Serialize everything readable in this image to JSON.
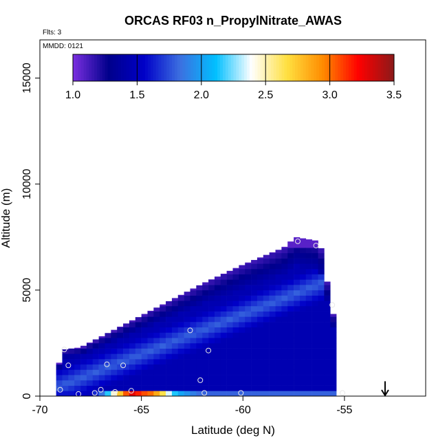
{
  "chart_data": {
    "type": "heatmap",
    "title": "ORCAS RF03 n_PropylNitrate_AWAS",
    "annotations": {
      "flights": "Flts: 3",
      "date": "MMDD: 0121"
    },
    "xlabel": "Latitude (deg N)",
    "ylabel": "Altitude (m)",
    "xlim": [
      -70,
      -51
    ],
    "ylim": [
      0,
      16800
    ],
    "x_ticks": [
      -70,
      -65,
      -60,
      -55
    ],
    "x_tick_labels": [
      "-70",
      "-65",
      "-60",
      "-55"
    ],
    "y_ticks": [
      0,
      5000,
      10000,
      15000
    ],
    "y_tick_labels": [
      "0",
      "5000",
      "10000",
      "15000"
    ],
    "colorbar": {
      "range": [
        1.0,
        3.5
      ],
      "ticks": [
        1.0,
        1.5,
        2.0,
        2.5,
        3.0,
        3.5
      ],
      "tick_labels": [
        "1.0",
        "1.5",
        "2.0",
        "2.5",
        "3.0",
        "3.5"
      ],
      "colors": [
        "#7b2fe0",
        "#00008b",
        "#0000c8",
        "#3c6fe0",
        "#00bfff",
        "#ffffff",
        "#ffe040",
        "#ff8c00",
        "#ff0000",
        "#8b1a1a"
      ]
    },
    "field_envelope": {
      "lat_min": -69.2,
      "lat_max": -55.4,
      "lower_edge_altitude": 0,
      "upper_edge": [
        {
          "lat": -69.2,
          "alt": 1200
        },
        {
          "lat": -68.8,
          "alt": 2200
        },
        {
          "lat": -68.0,
          "alt": 2300
        },
        {
          "lat": -66.0,
          "alt": 3300
        },
        {
          "lat": -64.0,
          "alt": 4300
        },
        {
          "lat": -62.0,
          "alt": 5300
        },
        {
          "lat": -60.0,
          "alt": 6200
        },
        {
          "lat": -58.0,
          "alt": 7000
        },
        {
          "lat": -57.4,
          "alt": 7500
        },
        {
          "lat": -56.2,
          "alt": 7300
        },
        {
          "lat": -56.0,
          "alt": 6000
        },
        {
          "lat": -55.6,
          "alt": 4400
        },
        {
          "lat": -55.4,
          "alt": 2300
        }
      ]
    },
    "surface_values": [
      {
        "lat": -68.5,
        "value": 1.6
      },
      {
        "lat": -67.5,
        "value": 1.5
      },
      {
        "lat": -67.0,
        "value": 1.8
      },
      {
        "lat": -66.5,
        "value": 2.3
      },
      {
        "lat": -66.0,
        "value": 2.8
      },
      {
        "lat": -65.5,
        "value": 3.3
      },
      {
        "lat": -65.0,
        "value": 3.1
      },
      {
        "lat": -64.5,
        "value": 3.0
      },
      {
        "lat": -64.0,
        "value": 2.7
      },
      {
        "lat": -63.5,
        "value": 2.2
      },
      {
        "lat": -63.0,
        "value": 2.0
      },
      {
        "lat": -62.0,
        "value": 1.8
      },
      {
        "lat": -60.0,
        "value": 1.8
      },
      {
        "lat": -58.0,
        "value": 1.8
      },
      {
        "lat": -55.8,
        "value": 1.8
      }
    ],
    "samples": [
      {
        "lat": -68.8,
        "alt": 2200
      },
      {
        "lat": -68.6,
        "alt": 1450
      },
      {
        "lat": -69.0,
        "alt": 300
      },
      {
        "lat": -68.1,
        "alt": 100
      },
      {
        "lat": -67.3,
        "alt": 150
      },
      {
        "lat": -67.0,
        "alt": 300
      },
      {
        "lat": -66.7,
        "alt": 1500
      },
      {
        "lat": -66.3,
        "alt": 200
      },
      {
        "lat": -65.9,
        "alt": 1450
      },
      {
        "lat": -65.5,
        "alt": 250
      },
      {
        "lat": -62.6,
        "alt": 3100
      },
      {
        "lat": -62.1,
        "alt": 750
      },
      {
        "lat": -61.9,
        "alt": 150
      },
      {
        "lat": -61.7,
        "alt": 2150
      },
      {
        "lat": -60.1,
        "alt": 150
      },
      {
        "lat": -57.3,
        "alt": 7300
      },
      {
        "lat": -56.4,
        "alt": 7100
      },
      {
        "lat": -55.6,
        "alt": 4300
      },
      {
        "lat": -55.1,
        "alt": 150
      }
    ],
    "marker_arrow": {
      "lat": -53.0,
      "alt_top": 700,
      "alt_bottom": 0
    },
    "grid": false,
    "legend": "top (colorbar)"
  }
}
